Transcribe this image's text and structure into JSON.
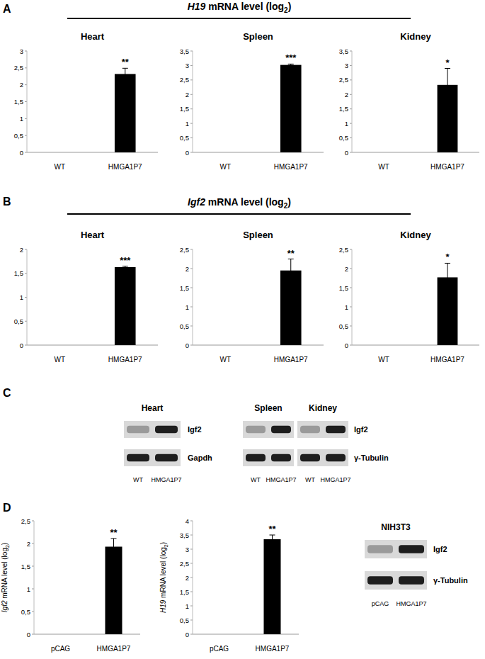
{
  "panels": [
    {
      "label": "A",
      "title_parts": [
        {
          "text": "H19",
          "style": "italic"
        },
        {
          "text": " mRNA level (log"
        },
        {
          "text": "2",
          "style": "sub"
        },
        {
          "text": ")"
        }
      ]
    },
    {
      "label": "B",
      "title_parts": [
        {
          "text": "Igf2",
          "style": "italic"
        },
        {
          "text": " mRNA level (log"
        },
        {
          "text": "2",
          "style": "sub"
        },
        {
          "text": ")"
        }
      ]
    },
    {
      "label": "C"
    },
    {
      "label": "D"
    }
  ],
  "chart_data": [
    {
      "type": "bar",
      "title": "Heart",
      "categories": [
        "WT",
        "HMGA1P7"
      ],
      "values": [
        0,
        2.32
      ],
      "errors": [
        0,
        0.17
      ],
      "color": "#000000",
      "ylim": [
        0,
        3
      ],
      "yticks": [
        0,
        {
          "value": 0.5,
          "label": "0,5"
        },
        1,
        {
          "value": 1.5,
          "label": "1,5"
        },
        2,
        {
          "value": 2.5,
          "label": "2,5"
        },
        3
      ],
      "annotations": [
        {
          "category": "HMGA1P7",
          "text": "**"
        }
      ]
    },
    {
      "type": "bar",
      "title": "Spleen",
      "categories": [
        "WT",
        "HMGA1P7"
      ],
      "values": [
        0,
        3.02
      ],
      "errors": [
        0,
        0.03
      ],
      "color": "#000000",
      "ylim": [
        0,
        3.5
      ],
      "yticks": [
        0,
        {
          "value": 0.5,
          "label": "0,5"
        },
        1,
        {
          "value": 1.5,
          "label": "1,5"
        },
        2,
        {
          "value": 2.5,
          "label": "2,5"
        },
        3,
        {
          "value": 3.5,
          "label": "3,5"
        }
      ],
      "annotations": [
        {
          "category": "HMGA1P7",
          "text": "***"
        }
      ]
    },
    {
      "type": "bar",
      "title": "Kidney",
      "categories": [
        "WT",
        "HMGA1P7"
      ],
      "values": [
        0,
        2.33
      ],
      "errors": [
        0,
        0.57
      ],
      "color": "#000000",
      "ylim": [
        0,
        3.5
      ],
      "yticks": [
        0,
        {
          "value": 0.5,
          "label": "0,5"
        },
        1,
        {
          "value": 1.5,
          "label": "1,5"
        },
        2,
        {
          "value": 2.5,
          "label": "2,5"
        },
        3,
        {
          "value": 3.5,
          "label": "3,5"
        }
      ],
      "annotations": [
        {
          "category": "HMGA1P7",
          "text": "*"
        }
      ]
    },
    {
      "type": "bar",
      "title": "Heart",
      "categories": [
        "WT",
        "HMGA1P7"
      ],
      "values": [
        0,
        1.63
      ],
      "errors": [
        0,
        0.02
      ],
      "color": "#000000",
      "ylim": [
        0,
        2
      ],
      "yticks": [
        0,
        {
          "value": 0.5,
          "label": "0,5"
        },
        1,
        {
          "value": 1.5,
          "label": "1,5"
        },
        2
      ],
      "annotations": [
        {
          "category": "HMGA1P7",
          "text": "***"
        }
      ]
    },
    {
      "type": "bar",
      "title": "Spleen",
      "categories": [
        "WT",
        "HMGA1P7"
      ],
      "values": [
        0,
        1.95
      ],
      "errors": [
        0,
        0.3
      ],
      "color": "#000000",
      "ylim": [
        0,
        2.5
      ],
      "yticks": [
        0,
        {
          "value": 0.5,
          "label": "0,5"
        },
        1,
        {
          "value": 1.5,
          "label": "1,5"
        },
        2,
        {
          "value": 2.5,
          "label": "2,5"
        }
      ],
      "annotations": [
        {
          "category": "HMGA1P7",
          "text": "**"
        }
      ]
    },
    {
      "type": "bar",
      "title": "Kidney",
      "categories": [
        "WT",
        "HMGA1P7"
      ],
      "values": [
        0,
        1.77
      ],
      "errors": [
        0,
        0.37
      ],
      "color": "#000000",
      "ylim": [
        0,
        2.5
      ],
      "yticks": [
        0,
        {
          "value": 0.5,
          "label": "0,5"
        },
        1,
        {
          "value": 1.5,
          "label": "1,5"
        },
        2,
        {
          "value": 2.5,
          "label": "2,5"
        }
      ],
      "annotations": [
        {
          "category": "HMGA1P7",
          "text": "*"
        }
      ]
    },
    {
      "type": "bar",
      "y_label_parts": [
        {
          "text": "Igf2",
          "style": "italic"
        },
        {
          "text": " mRNA level (log"
        },
        {
          "text": "2",
          "style": "sub"
        },
        {
          "text": ")"
        }
      ],
      "categories": [
        "pCAG",
        "HMGA1P7"
      ],
      "values": [
        0,
        1.93
      ],
      "errors": [
        0,
        0.18
      ],
      "color": "#000000",
      "ylim": [
        0,
        2.5
      ],
      "yticks": [
        0,
        {
          "value": 0.5,
          "label": "0,5"
        },
        1,
        {
          "value": 1.5,
          "label": "1,5"
        },
        2,
        {
          "value": 2.5,
          "label": "2,5"
        }
      ],
      "annotations": [
        {
          "category": "HMGA1P7",
          "text": "**"
        }
      ]
    },
    {
      "type": "bar",
      "y_label_parts": [
        {
          "text": "H19",
          "style": "italic"
        },
        {
          "text": " mRNA level (log"
        },
        {
          "text": "2",
          "style": "sub"
        },
        {
          "text": ")"
        }
      ],
      "categories": [
        "pCAG",
        "HMGA1P7"
      ],
      "values": [
        0,
        3.35
      ],
      "errors": [
        0,
        0.15
      ],
      "color": "#000000",
      "ylim": [
        0,
        4
      ],
      "yticks": [
        0,
        {
          "value": 0.5,
          "label": "0,5"
        },
        1,
        {
          "value": 1.5,
          "label": "1,5"
        },
        2,
        {
          "value": 2.5,
          "label": "2,5"
        },
        3,
        {
          "value": 3.5,
          "label": "3,5"
        },
        4
      ],
      "annotations": [
        {
          "category": "HMGA1P7",
          "text": "**"
        }
      ]
    }
  ],
  "blot_groups": [
    {
      "blots": [
        {
          "title": "Heart",
          "lanes": [
            "WT",
            "HMGA1P7"
          ]
        }
      ],
      "rows": [
        "Igf2",
        "Gapdh"
      ]
    },
    {
      "blots": [
        {
          "title": "Spleen",
          "lanes": [
            "WT",
            "HMGA1P7"
          ]
        },
        {
          "title": "Kidney",
          "lanes": [
            "WT",
            "HMGA1P7"
          ]
        }
      ],
      "rows": [
        "Igf2",
        "γ-Tubulin"
      ]
    },
    {
      "title": "NIH3T3",
      "blots": [
        {
          "lanes": [
            "pCAG",
            "HMGA1P7"
          ]
        }
      ],
      "rows": [
        "Igf2",
        "γ-Tubulin"
      ]
    }
  ]
}
